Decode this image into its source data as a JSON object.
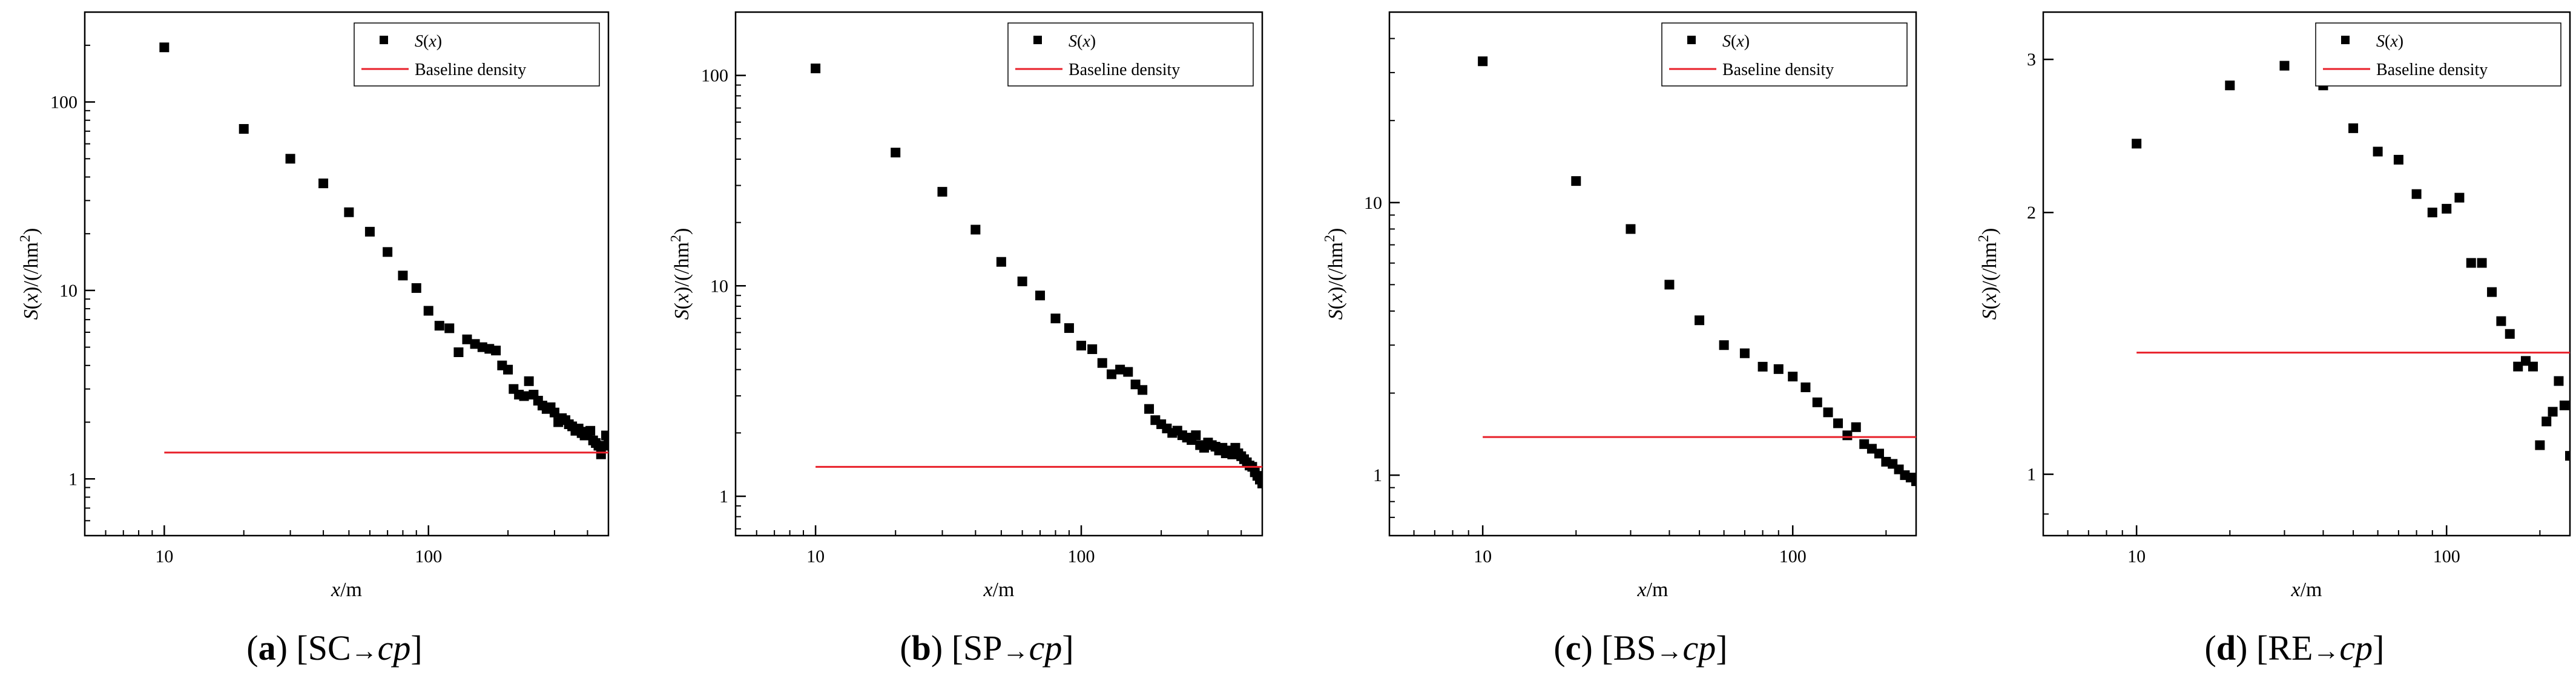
{
  "figure": {
    "colors": {
      "points": "#000000",
      "baseline": "#e8202a",
      "axes": "#000000",
      "background": "#ffffff"
    },
    "legend_labels": {
      "series": "S(x)",
      "baseline": "Baseline density"
    }
  },
  "chart_data": [
    {
      "id": "a",
      "type": "scatter",
      "scale": "log-log",
      "caption": {
        "letter": "a",
        "pair": "[SC→cp]",
        "source": "SC",
        "target": "cp"
      },
      "xlabel": "x/m",
      "ylabel": "S(x)/(/hm²)",
      "xlim": [
        5,
        480
      ],
      "ylim": [
        0.5,
        300
      ],
      "xticks": [
        10,
        100
      ],
      "yticks": [
        1,
        10,
        100
      ],
      "legend_position": "top-right",
      "series": [
        {
          "name": "S(x)",
          "x": [
            10,
            20,
            30,
            40,
            50,
            60,
            70,
            80,
            90,
            100,
            110,
            120,
            130,
            140,
            150,
            160,
            170,
            180,
            190,
            200,
            210,
            220,
            230,
            240,
            250,
            260,
            270,
            280,
            290,
            300,
            310,
            320,
            330,
            340,
            350,
            360,
            370,
            380,
            390,
            400,
            410,
            420,
            430,
            440,
            450,
            460,
            470,
            480
          ],
          "y": [
            195,
            72,
            50,
            37,
            26,
            20.5,
            16,
            12,
            10.3,
            7.8,
            6.5,
            6.3,
            4.7,
            5.5,
            5.2,
            5.0,
            4.9,
            4.8,
            4.0,
            3.8,
            3.0,
            2.8,
            2.75,
            3.3,
            2.8,
            2.6,
            2.45,
            2.35,
            2.4,
            2.25,
            2.0,
            2.1,
            2.05,
            1.95,
            1.9,
            1.8,
            1.85,
            1.75,
            1.7,
            1.78,
            1.8,
            1.6,
            1.55,
            1.5,
            1.35,
            1.5,
            1.7,
            1.6
          ]
        },
        {
          "name": "Baseline density",
          "kind": "line",
          "x": [
            10,
            480
          ],
          "y": [
            1.38,
            1.38
          ]
        }
      ]
    },
    {
      "id": "b",
      "type": "scatter",
      "scale": "log-log",
      "caption": {
        "letter": "b",
        "pair": "[SP→cp]",
        "source": "SP",
        "target": "cp"
      },
      "xlabel": "x/m",
      "ylabel": "S(x)/(/hm²)",
      "xlim": [
        5,
        480
      ],
      "ylim": [
        0.65,
        200
      ],
      "xticks": [
        10,
        100
      ],
      "yticks": [
        1,
        10,
        100
      ],
      "legend_position": "top-right",
      "series": [
        {
          "name": "S(x)",
          "x": [
            10,
            20,
            30,
            40,
            50,
            60,
            70,
            80,
            90,
            100,
            110,
            120,
            130,
            140,
            150,
            160,
            170,
            180,
            190,
            200,
            210,
            220,
            230,
            240,
            250,
            260,
            270,
            280,
            290,
            300,
            310,
            320,
            330,
            340,
            350,
            360,
            370,
            380,
            390,
            400,
            410,
            420,
            430,
            440,
            450,
            460,
            470,
            480
          ],
          "y": [
            108,
            43,
            28,
            18.5,
            13,
            10.5,
            9,
            7,
            6.3,
            5.2,
            5.0,
            4.3,
            3.8,
            4.0,
            3.9,
            3.4,
            3.2,
            2.6,
            2.3,
            2.2,
            2.1,
            2.0,
            2.05,
            1.95,
            1.9,
            1.85,
            1.95,
            1.75,
            1.7,
            1.8,
            1.75,
            1.72,
            1.65,
            1.7,
            1.6,
            1.65,
            1.58,
            1.7,
            1.6,
            1.55,
            1.5,
            1.45,
            1.4,
            1.38,
            1.3,
            1.25,
            1.2,
            1.15
          ]
        },
        {
          "name": "Baseline density",
          "kind": "line",
          "x": [
            10,
            480
          ],
          "y": [
            1.38,
            1.38
          ]
        }
      ]
    },
    {
      "id": "c",
      "type": "scatter",
      "scale": "log-log",
      "caption": {
        "letter": "c",
        "pair": "[BS→cp]",
        "source": "BS",
        "target": "cp"
      },
      "xlabel": "x/m",
      "ylabel": "S(x)/(/hm²)",
      "xlim": [
        5,
        250
      ],
      "ylim": [
        0.6,
        50
      ],
      "xticks": [
        10,
        100
      ],
      "yticks": [
        1,
        10
      ],
      "legend_position": "top-right",
      "series": [
        {
          "name": "S(x)",
          "x": [
            10,
            20,
            30,
            40,
            50,
            60,
            70,
            80,
            90,
            100,
            110,
            120,
            130,
            140,
            150,
            160,
            170,
            180,
            190,
            200,
            210,
            220,
            230,
            240,
            250
          ],
          "y": [
            33,
            12,
            8,
            5,
            3.7,
            3.0,
            2.8,
            2.5,
            2.45,
            2.3,
            2.1,
            1.85,
            1.7,
            1.55,
            1.4,
            1.5,
            1.3,
            1.25,
            1.2,
            1.12,
            1.1,
            1.05,
            1.0,
            0.98,
            0.95
          ]
        },
        {
          "name": "Baseline density",
          "kind": "line",
          "x": [
            10,
            250
          ],
          "y": [
            1.38,
            1.38
          ]
        }
      ]
    },
    {
      "id": "d",
      "type": "scatter",
      "scale": "log-log",
      "caption": {
        "letter": "d",
        "pair": "[RE→cp]",
        "source": "RE",
        "target": "cp"
      },
      "xlabel": "x/m",
      "ylabel": "S(x)/(/hm²)",
      "xlim": [
        5,
        250
      ],
      "ylim": [
        0.85,
        3.4
      ],
      "xticks": [
        10,
        100
      ],
      "yticks": [
        1,
        2,
        3
      ],
      "legend_position": "top-right",
      "series": [
        {
          "name": "S(x)",
          "x": [
            10,
            20,
            30,
            40,
            50,
            60,
            70,
            80,
            90,
            100,
            110,
            120,
            130,
            140,
            150,
            160,
            170,
            180,
            190,
            200,
            210,
            220,
            230,
            240,
            250
          ],
          "y": [
            2.4,
            2.8,
            2.95,
            2.8,
            2.5,
            2.35,
            2.3,
            2.1,
            2.0,
            2.02,
            2.08,
            1.75,
            1.75,
            1.62,
            1.5,
            1.45,
            1.33,
            1.35,
            1.33,
            1.08,
            1.15,
            1.18,
            1.28,
            1.2,
            1.05
          ]
        },
        {
          "name": "Baseline density",
          "kind": "line",
          "x": [
            10,
            250
          ],
          "y": [
            1.38,
            1.38
          ]
        }
      ]
    }
  ]
}
